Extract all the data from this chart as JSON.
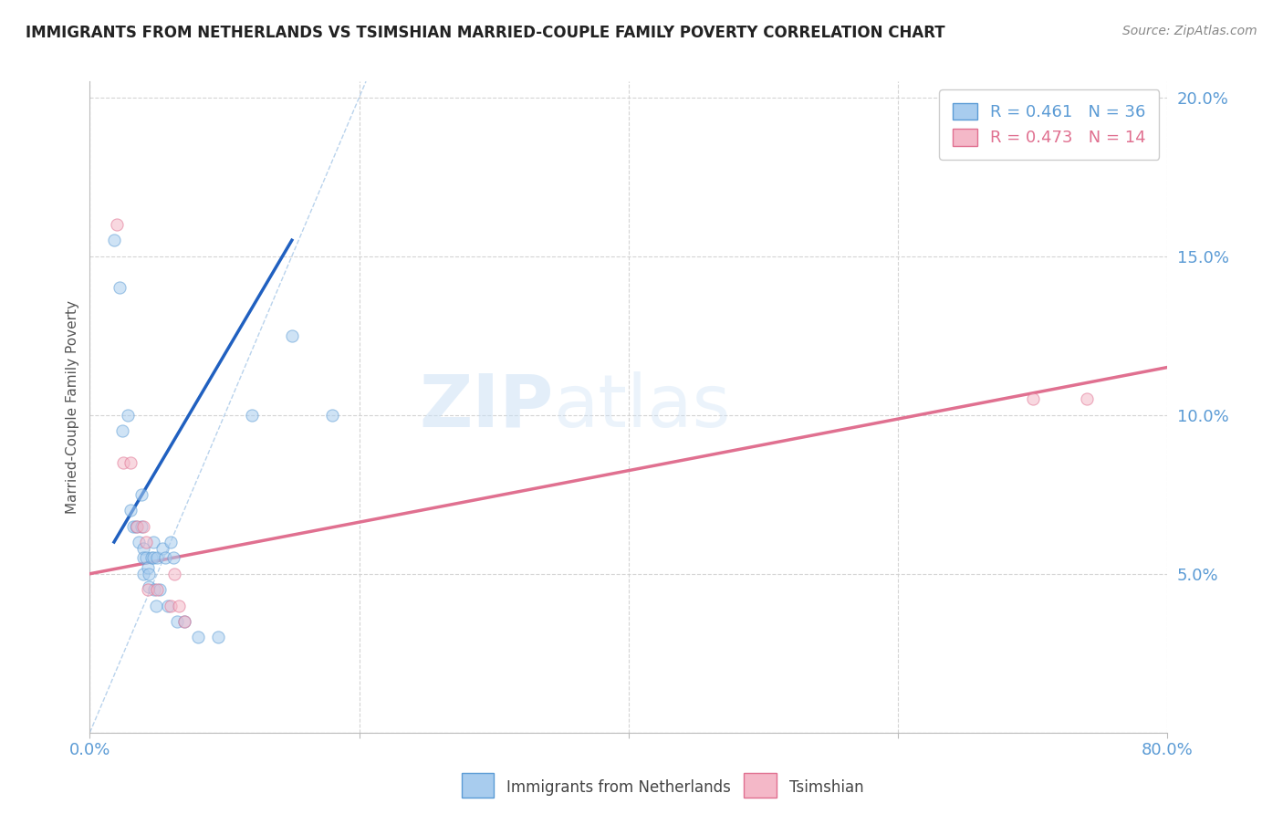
{
  "title": "IMMIGRANTS FROM NETHERLANDS VS TSIMSHIAN MARRIED-COUPLE FAMILY POVERTY CORRELATION CHART",
  "source": "Source: ZipAtlas.com",
  "ylabel": "Married-Couple Family Poverty",
  "xlim": [
    0.0,
    0.8
  ],
  "ylim": [
    0.0,
    0.205
  ],
  "x_ticks": [
    0.0,
    0.2,
    0.4,
    0.6,
    0.8
  ],
  "x_tick_labels_show": [
    "0.0%",
    "",
    "",
    "",
    "80.0%"
  ],
  "y_ticks": [
    0.0,
    0.05,
    0.1,
    0.15,
    0.2
  ],
  "y_tick_labels": [
    "",
    "5.0%",
    "10.0%",
    "15.0%",
    "20.0%"
  ],
  "legend_r1": "R = 0.461   N = 36",
  "legend_r2": "R = 0.473   N = 14",
  "legend_color1": "#5b9bd5",
  "legend_color2": "#e07090",
  "watermark_zip": "ZIP",
  "watermark_atlas": "atlas",
  "blue_scatter_x": [
    0.018,
    0.022,
    0.024,
    0.028,
    0.03,
    0.032,
    0.034,
    0.036,
    0.038,
    0.038,
    0.04,
    0.04,
    0.04,
    0.042,
    0.043,
    0.044,
    0.044,
    0.046,
    0.047,
    0.047,
    0.048,
    0.049,
    0.05,
    0.052,
    0.054,
    0.056,
    0.058,
    0.06,
    0.062,
    0.065,
    0.07,
    0.08,
    0.095,
    0.12,
    0.15,
    0.18
  ],
  "blue_scatter_y": [
    0.155,
    0.14,
    0.095,
    0.1,
    0.07,
    0.065,
    0.065,
    0.06,
    0.075,
    0.065,
    0.058,
    0.055,
    0.05,
    0.055,
    0.052,
    0.05,
    0.046,
    0.055,
    0.06,
    0.055,
    0.045,
    0.04,
    0.055,
    0.045,
    0.058,
    0.055,
    0.04,
    0.06,
    0.055,
    0.035,
    0.035,
    0.03,
    0.03,
    0.1,
    0.125,
    0.1
  ],
  "pink_scatter_x": [
    0.02,
    0.025,
    0.03,
    0.035,
    0.04,
    0.042,
    0.043,
    0.05,
    0.06,
    0.063,
    0.066,
    0.07,
    0.7,
    0.74
  ],
  "pink_scatter_y": [
    0.16,
    0.085,
    0.085,
    0.065,
    0.065,
    0.06,
    0.045,
    0.045,
    0.04,
    0.05,
    0.04,
    0.035,
    0.105,
    0.105
  ],
  "blue_line_x": [
    0.018,
    0.15
  ],
  "blue_line_y": [
    0.06,
    0.155
  ],
  "pink_line_x": [
    0.0,
    0.8
  ],
  "pink_line_y": [
    0.05,
    0.115
  ],
  "diag_line_x": [
    0.0,
    0.205
  ],
  "diag_line_y": [
    0.0,
    0.205
  ],
  "background_color": "#ffffff",
  "scatter_alpha": 0.55,
  "scatter_size": 90,
  "tick_color": "#5b9bd5",
  "ylabel_color": "#555555",
  "grid_color": "#d0d0d0",
  "blue_scatter_color": "#a8ccee",
  "blue_scatter_edge": "#5b9bd5",
  "pink_scatter_color": "#f4b8c8",
  "pink_scatter_edge": "#e07090",
  "blue_line_color": "#2060c0",
  "pink_line_color": "#e07090",
  "diag_line_color": "#a8c8e8"
}
